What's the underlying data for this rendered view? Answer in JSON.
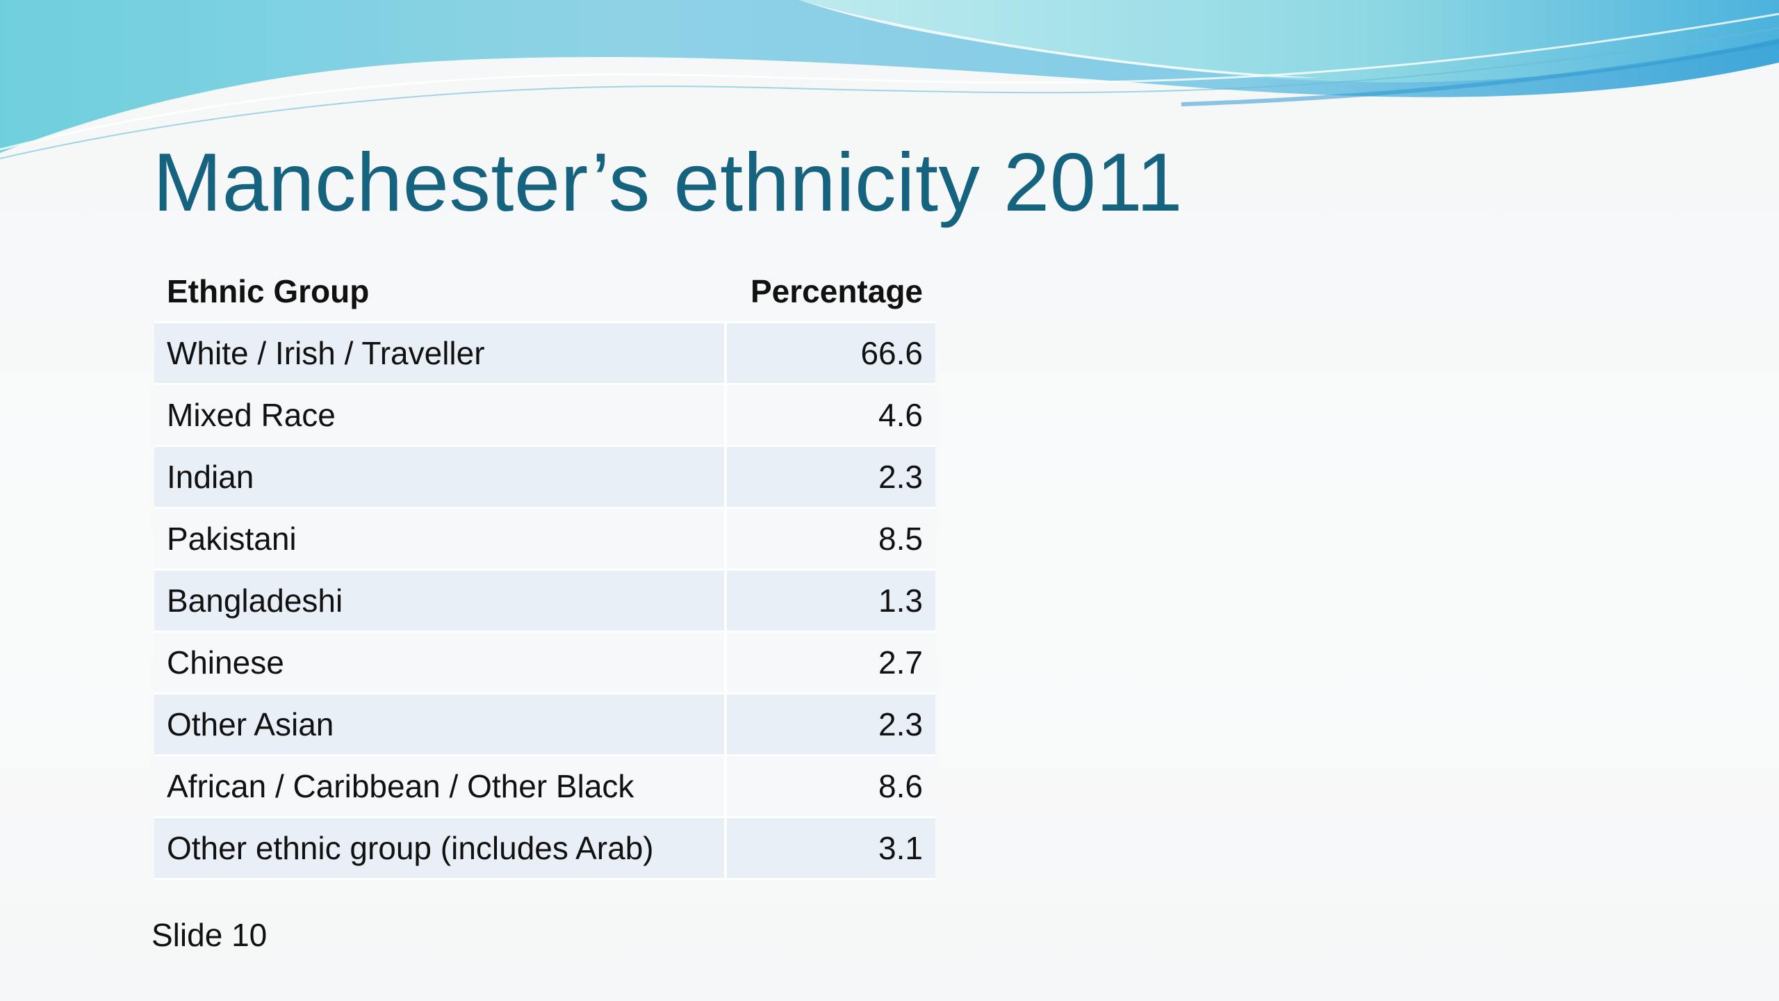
{
  "slide": {
    "title": "Manchester’s ethnicity 2011",
    "footer": "Slide 10",
    "colors": {
      "title": "#15637f",
      "row_band": "#e8eff6",
      "wave_light": "#9adbe6",
      "wave_dark": "#3fa9d4"
    }
  },
  "table": {
    "headers": [
      "Ethnic Group",
      "Percentage"
    ],
    "rows": [
      {
        "group": "White / Irish / Traveller",
        "percentage": "66.6"
      },
      {
        "group": "Mixed Race",
        "percentage": "4.6"
      },
      {
        "group": "Indian",
        "percentage": "2.3"
      },
      {
        "group": "Pakistani",
        "percentage": "8.5"
      },
      {
        "group": "Bangladeshi",
        "percentage": "1.3"
      },
      {
        "group": "Chinese",
        "percentage": "2.7"
      },
      {
        "group": "Other Asian",
        "percentage": "2.3"
      },
      {
        "group": "African / Caribbean / Other Black",
        "percentage": "8.6"
      },
      {
        "group": "Other ethnic group (includes Arab)",
        "percentage": "3.1"
      }
    ]
  }
}
